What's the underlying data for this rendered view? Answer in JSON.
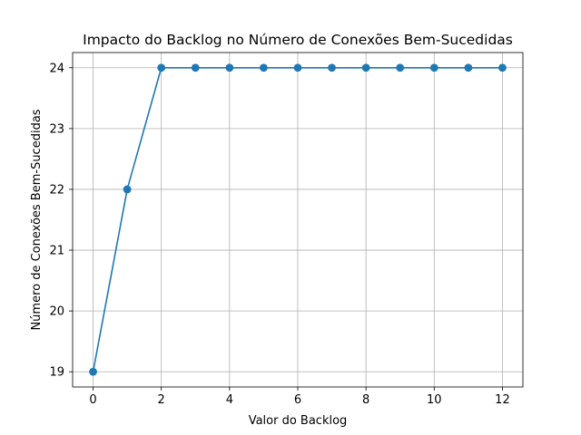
{
  "chart_data": {
    "type": "line",
    "title": "Impacto do Backlog no Número de Conexões Bem-Sucedidas",
    "xlabel": "Valor do Backlog",
    "ylabel": "Número de Conexões Bem-Sucedidas",
    "x": [
      0,
      1,
      2,
      3,
      4,
      5,
      6,
      7,
      8,
      9,
      10,
      11,
      12
    ],
    "series": [
      {
        "values": [
          19,
          22,
          24,
          24,
          24,
          24,
          24,
          24,
          24,
          24,
          24,
          24,
          24
        ],
        "color": "#1f77b4",
        "marker": "circle"
      }
    ],
    "xticks": [
      0,
      2,
      4,
      6,
      8,
      10,
      12
    ],
    "yticks": [
      19,
      20,
      21,
      22,
      23,
      24
    ],
    "xlim": [
      -0.6,
      12.6
    ],
    "ylim": [
      18.75,
      24.25
    ],
    "grid": true,
    "legend": "none"
  }
}
